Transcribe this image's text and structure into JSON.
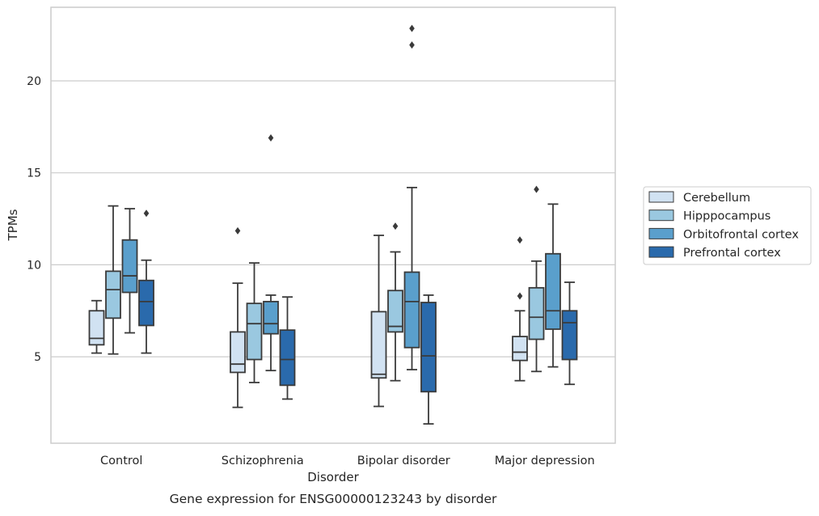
{
  "chart_data": {
    "type": "box",
    "title": "",
    "caption": "Gene expression for ENSG00000123243 by disorder",
    "xlabel": "Disorder",
    "ylabel": "TPMs",
    "ylim": [
      0.3,
      24.0
    ],
    "yticks": [
      5,
      10,
      15,
      20
    ],
    "grid": true,
    "legend_placement": "right, outside plot",
    "categories": [
      "Control",
      "Schizophrenia",
      "Bipolar disorder",
      "Major depression"
    ],
    "series": [
      {
        "name": "Cerebellum",
        "color": "#d1e2f2",
        "boxes": [
          {
            "category": "Control",
            "whisker_low": 5.2,
            "q1": 5.65,
            "median": 6.0,
            "q3": 7.5,
            "whisker_high": 8.05,
            "outliers": []
          },
          {
            "category": "Schizophrenia",
            "whisker_low": 2.25,
            "q1": 4.15,
            "median": 4.6,
            "q3": 6.35,
            "whisker_high": 9.0,
            "outliers": [
              11.85
            ]
          },
          {
            "category": "Bipolar disorder",
            "whisker_low": 2.3,
            "q1": 3.85,
            "median": 4.05,
            "q3": 7.45,
            "whisker_high": 11.6,
            "outliers": []
          },
          {
            "category": "Major depression",
            "whisker_low": 3.7,
            "q1": 4.8,
            "median": 5.25,
            "q3": 6.1,
            "whisker_high": 7.5,
            "outliers": [
              8.3,
              11.35
            ]
          }
        ]
      },
      {
        "name": "Hipppocampus",
        "color": "#9ac8e0",
        "boxes": [
          {
            "category": "Control",
            "whisker_low": 5.15,
            "q1": 7.1,
            "median": 8.65,
            "q3": 9.65,
            "whisker_high": 13.2,
            "outliers": []
          },
          {
            "category": "Schizophrenia",
            "whisker_low": 3.6,
            "q1": 4.85,
            "median": 6.8,
            "q3": 7.9,
            "whisker_high": 10.1,
            "outliers": []
          },
          {
            "category": "Bipolar disorder",
            "whisker_low": 3.7,
            "q1": 6.35,
            "median": 6.65,
            "q3": 8.6,
            "whisker_high": 10.7,
            "outliers": [
              12.1
            ]
          },
          {
            "category": "Major depression",
            "whisker_low": 4.2,
            "q1": 5.95,
            "median": 7.15,
            "q3": 8.75,
            "whisker_high": 10.2,
            "outliers": [
              14.1
            ]
          }
        ]
      },
      {
        "name": "Orbitofrontal cortex",
        "color": "#5a9fcc",
        "boxes": [
          {
            "category": "Control",
            "whisker_low": 6.3,
            "q1": 8.5,
            "median": 9.4,
            "q3": 11.35,
            "whisker_high": 13.05,
            "outliers": []
          },
          {
            "category": "Schizophrenia",
            "whisker_low": 4.25,
            "q1": 6.25,
            "median": 6.8,
            "q3": 8.0,
            "whisker_high": 8.35,
            "outliers": [
              16.9
            ]
          },
          {
            "category": "Bipolar disorder",
            "whisker_low": 4.3,
            "q1": 5.5,
            "median": 8.0,
            "q3": 9.6,
            "whisker_high": 14.2,
            "outliers": [
              21.95,
              22.85
            ]
          },
          {
            "category": "Major depression",
            "whisker_low": 4.45,
            "q1": 6.5,
            "median": 7.5,
            "q3": 10.6,
            "whisker_high": 13.3,
            "outliers": []
          }
        ]
      },
      {
        "name": "Prefrontal cortex",
        "color": "#2a6aac",
        "boxes": [
          {
            "category": "Control",
            "whisker_low": 5.2,
            "q1": 6.7,
            "median": 8.0,
            "q3": 9.15,
            "whisker_high": 10.25,
            "outliers": [
              12.8
            ]
          },
          {
            "category": "Schizophrenia",
            "whisker_low": 2.7,
            "q1": 3.45,
            "median": 4.85,
            "q3": 6.45,
            "whisker_high": 8.25,
            "outliers": []
          },
          {
            "category": "Bipolar disorder",
            "whisker_low": 1.35,
            "q1": 3.1,
            "median": 5.05,
            "q3": 7.95,
            "whisker_high": 8.35,
            "outliers": []
          },
          {
            "category": "Major depression",
            "whisker_low": 3.5,
            "q1": 4.85,
            "median": 6.85,
            "q3": 7.5,
            "whisker_high": 9.05,
            "outliers": []
          }
        ]
      }
    ]
  }
}
